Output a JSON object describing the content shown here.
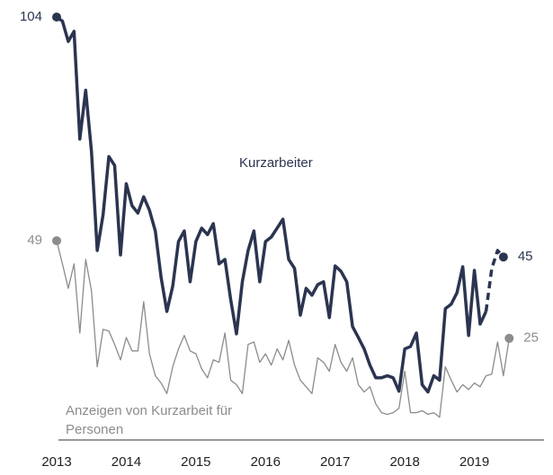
{
  "chart_data": {
    "type": "line",
    "xlim": [
      2013,
      2020
    ],
    "xticks": [
      2013,
      2014,
      2015,
      2016,
      2017,
      2018,
      2019
    ],
    "ylim": [
      0,
      104
    ],
    "dashed_from_index": 74,
    "series": [
      {
        "name": "Kurzarbeiter",
        "color": "#2b3550",
        "x": [
          2013,
          2013.083,
          2013.167,
          2013.25,
          2013.333,
          2013.417,
          2013.5,
          2013.583,
          2013.667,
          2013.75,
          2013.833,
          2013.917,
          2014,
          2014.083,
          2014.167,
          2014.25,
          2014.333,
          2014.417,
          2014.5,
          2014.583,
          2014.667,
          2014.75,
          2014.833,
          2014.917,
          2015,
          2015.083,
          2015.167,
          2015.25,
          2015.333,
          2015.417,
          2015.5,
          2015.583,
          2015.667,
          2015.75,
          2015.833,
          2015.917,
          2016,
          2016.083,
          2016.167,
          2016.25,
          2016.333,
          2016.417,
          2016.5,
          2016.583,
          2016.667,
          2016.75,
          2016.833,
          2016.917,
          2017,
          2017.083,
          2017.167,
          2017.25,
          2017.333,
          2017.417,
          2017.5,
          2017.583,
          2017.667,
          2017.75,
          2017.833,
          2017.917,
          2018,
          2018.083,
          2018.167,
          2018.25,
          2018.333,
          2018.417,
          2018.5,
          2018.583,
          2018.667,
          2018.75,
          2018.833,
          2018.917,
          2019,
          2019.083,
          2019.167,
          2019.25,
          2019.333,
          2019.417
        ],
        "values": [
          104,
          103,
          98,
          100.5,
          74,
          86,
          71,
          46.6,
          55.4,
          69.7,
          67.5,
          45.5,
          63,
          57.6,
          55.8,
          59.8,
          56.5,
          51.4,
          40,
          31.6,
          37.8,
          48.8,
          51.4,
          38.9,
          48.8,
          52.1,
          50.5,
          53.2,
          43.3,
          44.4,
          34.5,
          26.1,
          38.9,
          46.6,
          51.4,
          38.9,
          48.8,
          49.9,
          52.1,
          54.3,
          44.4,
          42.2,
          30.7,
          37.3,
          35.6,
          38.2,
          38.9,
          30.1,
          42.8,
          41.5,
          38.9,
          27.9,
          25.2,
          22.4,
          18.4,
          15.3,
          15.3,
          15.8,
          15.3,
          12,
          22.4,
          23,
          26.3,
          13.6,
          11.8,
          15.8,
          14.7,
          32.3,
          33.4,
          36.2,
          42.6,
          25.7,
          41.7,
          28.5,
          31.6,
          42.2,
          46.6,
          45
        ]
      },
      {
        "name": "Anzeigen von Kurzarbeit für Personen",
        "color": "#8c8c8c",
        "x": [
          2013,
          2013.083,
          2013.167,
          2013.25,
          2013.333,
          2013.417,
          2013.5,
          2013.583,
          2013.667,
          2013.75,
          2013.833,
          2013.917,
          2014,
          2014.083,
          2014.167,
          2014.25,
          2014.333,
          2014.417,
          2014.5,
          2014.583,
          2014.667,
          2014.75,
          2014.833,
          2014.917,
          2015,
          2015.083,
          2015.167,
          2015.25,
          2015.333,
          2015.417,
          2015.5,
          2015.583,
          2015.667,
          2015.75,
          2015.833,
          2015.917,
          2016,
          2016.083,
          2016.167,
          2016.25,
          2016.333,
          2016.417,
          2016.5,
          2016.583,
          2016.667,
          2016.75,
          2016.833,
          2016.917,
          2017,
          2017.083,
          2017.167,
          2017.25,
          2017.333,
          2017.417,
          2017.5,
          2017.583,
          2017.667,
          2017.75,
          2017.833,
          2017.917,
          2018,
          2018.083,
          2018.167,
          2018.25,
          2018.333,
          2018.417,
          2018.5,
          2018.583,
          2018.667,
          2018.75,
          2018.833,
          2018.917,
          2019,
          2019.083,
          2019.167,
          2019.25,
          2019.333,
          2019.417,
          2019.5
        ],
        "values": [
          49,
          43.3,
          37.3,
          43.3,
          26.3,
          44.4,
          36.7,
          18,
          27.2,
          26.8,
          23.5,
          19.7,
          25.2,
          21.9,
          21.9,
          34,
          21.2,
          15.8,
          14,
          11.4,
          18,
          22.4,
          25.7,
          21.9,
          21.2,
          17.5,
          15.3,
          19.7,
          19.1,
          26.3,
          14.7,
          13.6,
          11.4,
          23.5,
          24.1,
          19.1,
          21.2,
          18.4,
          22.4,
          19.7,
          24.5,
          18.4,
          14.7,
          13.1,
          11.4,
          20.2,
          19.1,
          16.9,
          23.5,
          19.1,
          16.9,
          20.2,
          13.6,
          11.8,
          13.1,
          8.9,
          6.7,
          6.3,
          6.7,
          7.8,
          16.9,
          6.7,
          6.7,
          7.2,
          6.3,
          6.7,
          5.6,
          18,
          14.7,
          11.8,
          13.6,
          12.4,
          14,
          13.1,
          15.8,
          16.2,
          24.1,
          15.8,
          25
        ]
      }
    ]
  }
}
